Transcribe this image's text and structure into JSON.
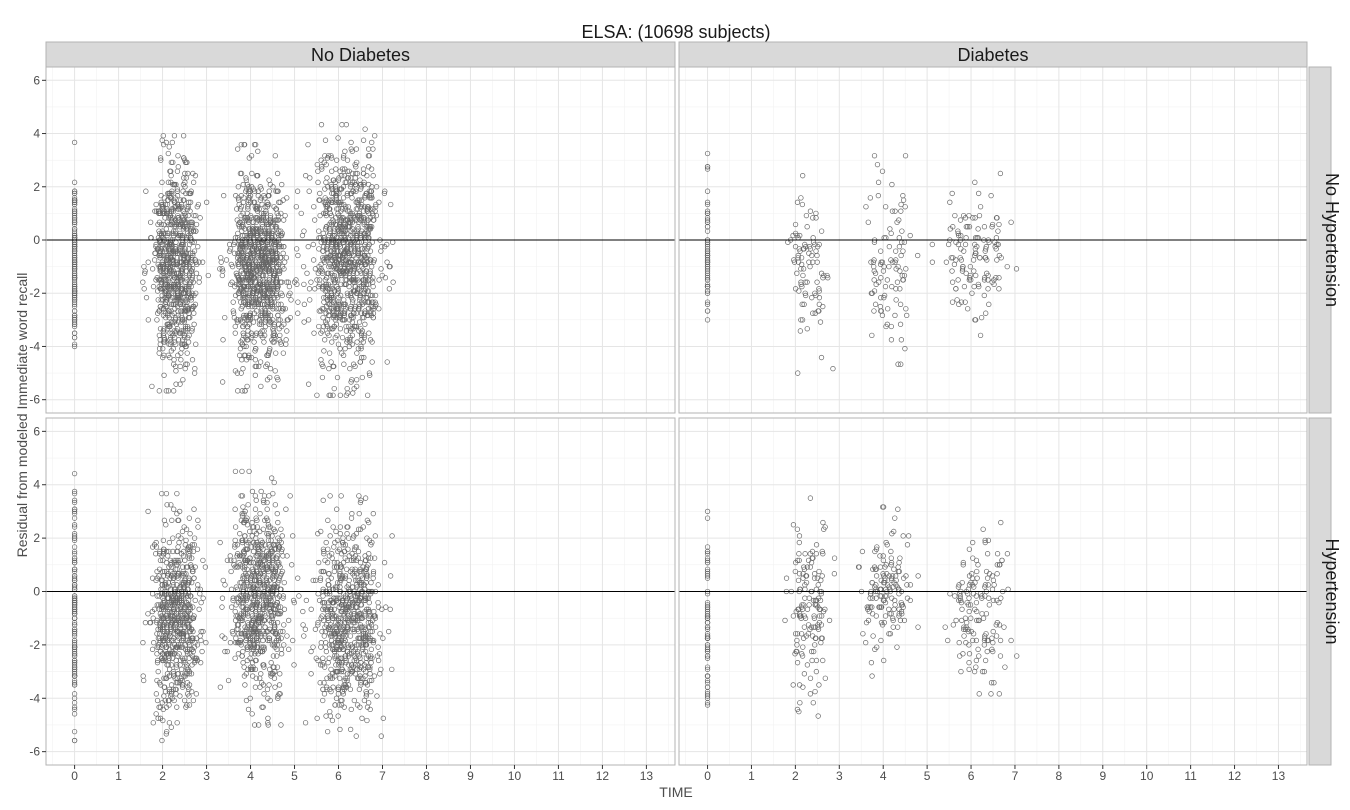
{
  "chart_data": {
    "type": "scatter",
    "title": "ELSA: (10698 subjects)",
    "xlabel": "TIME",
    "ylabel": "Residual from modeled Immediate word recall",
    "xlim": [
      -0.65,
      13.65
    ],
    "ylim": [
      -6.5,
      6.5
    ],
    "x_ticks": [
      0,
      1,
      2,
      3,
      4,
      5,
      6,
      7,
      8,
      9,
      10,
      11,
      12,
      13
    ],
    "y_ticks": [
      -6,
      -4,
      -2,
      0,
      2,
      4,
      6
    ],
    "reference_line_y": 0,
    "grid": true,
    "marker": "open-circle",
    "column_facets": [
      "No Diabetes",
      "Diabetes"
    ],
    "row_facets": [
      "No Hypertension",
      "Hypertension"
    ],
    "colors": {
      "strip_fill": "#d9d9d9",
      "panel_border": "#b3b3b3",
      "grid_major": "#e5e5e5",
      "grid_minor": "#f2f2f2",
      "point_stroke": "#666666",
      "reference_line": "#000000"
    },
    "panels": [
      {
        "column": "No Diabetes",
        "row": "No Hypertension",
        "n_points_approx": 2800,
        "clusters": [
          {
            "x_center": 0.0,
            "x_spread": 0.02,
            "y_range": [
              -5.2,
              3.7
            ],
            "n": 140
          },
          {
            "x_center": 2.3,
            "x_spread": 0.25,
            "y_range": [
              -5.7,
              3.9
            ],
            "n": 750
          },
          {
            "x_center": 4.2,
            "x_spread": 0.3,
            "y_range": [
              -5.7,
              3.6
            ],
            "n": 950
          },
          {
            "x_center": 6.2,
            "x_spread": 0.35,
            "y_range": [
              -5.8,
              4.3
            ],
            "n": 960
          }
        ]
      },
      {
        "column": "Diabetes",
        "row": "No Hypertension",
        "n_points_approx": 380,
        "clusters": [
          {
            "x_center": 0.0,
            "x_spread": 0.02,
            "y_range": [
              -4.0,
              3.5
            ],
            "n": 60
          },
          {
            "x_center": 2.3,
            "x_spread": 0.2,
            "y_range": [
              -5.0,
              2.5
            ],
            "n": 90
          },
          {
            "x_center": 4.1,
            "x_spread": 0.25,
            "y_range": [
              -4.7,
              3.2
            ],
            "n": 100
          },
          {
            "x_center": 6.1,
            "x_spread": 0.35,
            "y_range": [
              -3.6,
              2.6
            ],
            "n": 130
          }
        ]
      },
      {
        "column": "No Diabetes",
        "row": "Hypertension",
        "n_points_approx": 2200,
        "clusters": [
          {
            "x_center": 0.0,
            "x_spread": 0.02,
            "y_range": [
              -5.6,
              4.4
            ],
            "n": 130
          },
          {
            "x_center": 2.3,
            "x_spread": 0.25,
            "y_range": [
              -5.6,
              3.7
            ],
            "n": 640
          },
          {
            "x_center": 4.2,
            "x_spread": 0.3,
            "y_range": [
              -5.0,
              4.5
            ],
            "n": 720
          },
          {
            "x_center": 6.2,
            "x_spread": 0.35,
            "y_range": [
              -5.4,
              3.6
            ],
            "n": 710
          }
        ]
      },
      {
        "column": "Diabetes",
        "row": "Hypertension",
        "n_points_approx": 520,
        "clusters": [
          {
            "x_center": 0.0,
            "x_spread": 0.02,
            "y_range": [
              -5.3,
              3.1
            ],
            "n": 70
          },
          {
            "x_center": 2.3,
            "x_spread": 0.2,
            "y_range": [
              -4.7,
              3.5
            ],
            "n": 150
          },
          {
            "x_center": 4.1,
            "x_spread": 0.25,
            "y_range": [
              -3.2,
              3.2
            ],
            "n": 150
          },
          {
            "x_center": 6.2,
            "x_spread": 0.3,
            "y_range": [
              -3.8,
              2.7
            ],
            "n": 150
          }
        ]
      }
    ]
  }
}
